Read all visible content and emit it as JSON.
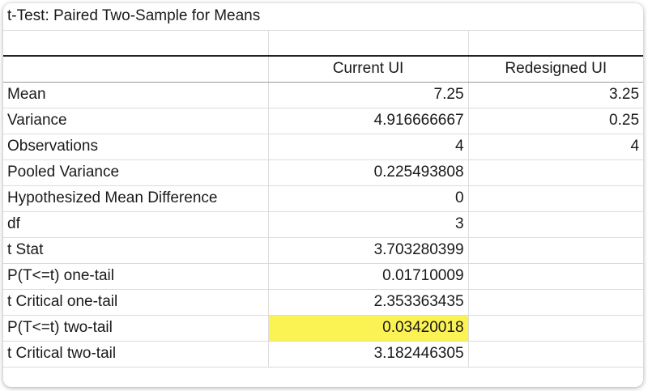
{
  "title": "t-Test: Paired Two-Sample for Means",
  "columns": [
    "",
    "Current UI",
    "Redesigned UI"
  ],
  "rows": [
    {
      "label": "Mean",
      "current": "7.25",
      "redesigned": "3.25"
    },
    {
      "label": "Variance",
      "current": "4.916666667",
      "redesigned": "0.25"
    },
    {
      "label": "Observations",
      "current": "4",
      "redesigned": "4"
    },
    {
      "label": "Pooled Variance",
      "current": "0.225493808",
      "redesigned": ""
    },
    {
      "label": "Hypothesized Mean Difference",
      "current": "0",
      "redesigned": ""
    },
    {
      "label": "df",
      "current": "3",
      "redesigned": ""
    },
    {
      "label": "t Stat",
      "current": "3.703280399",
      "redesigned": ""
    },
    {
      "label": "P(T<=t) one-tail",
      "current": "0.01710009",
      "redesigned": ""
    },
    {
      "label": "t Critical one-tail",
      "current": "2.353363435",
      "redesigned": ""
    },
    {
      "label": "P(T<=t) two-tail",
      "current": "0.03420018",
      "redesigned": ""
    },
    {
      "label": "t Critical two-tail",
      "current": "3.182446305",
      "redesigned": ""
    }
  ],
  "colors": {
    "highlight": "#fbf253",
    "gridline": "#dcdcdc"
  }
}
